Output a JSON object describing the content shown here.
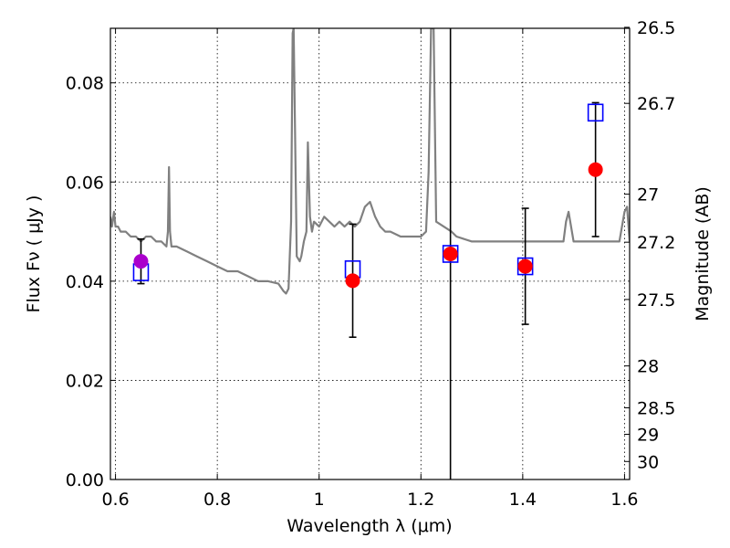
{
  "chart_data": {
    "type": "scatter",
    "title": "",
    "xlabel": "Wavelength  λ (μm)",
    "ylabel": "Flux  Fν  ( μJy )",
    "y2label": "Magnitude (AB)",
    "xlim": [
      0.59,
      1.61
    ],
    "ylim": [
      0.0,
      0.091
    ],
    "grid": true,
    "x_ticks": [
      {
        "value": 0.6,
        "label": "0.6"
      },
      {
        "value": 0.8,
        "label": "0.8"
      },
      {
        "value": 1.0,
        "label": "1"
      },
      {
        "value": 1.2,
        "label": "1.2"
      },
      {
        "value": 1.4,
        "label": "1.4"
      },
      {
        "value": 1.6,
        "label": "1.6"
      }
    ],
    "y_ticks": [
      {
        "value": 0.0,
        "label": "0.00"
      },
      {
        "value": 0.02,
        "label": "0.02"
      },
      {
        "value": 0.04,
        "label": "0.04"
      },
      {
        "value": 0.06,
        "label": "0.06"
      },
      {
        "value": 0.08,
        "label": "0.08"
      }
    ],
    "mag_ticks": [
      {
        "value": 26.5,
        "label": "26.5"
      },
      {
        "value": 26.7,
        "label": "26.7"
      },
      {
        "value": 27.0,
        "label": "27"
      },
      {
        "value": 27.2,
        "label": "27.2"
      },
      {
        "value": 27.5,
        "label": "27.5"
      },
      {
        "value": 28.0,
        "label": "28"
      },
      {
        "value": 28.5,
        "label": "28.5"
      },
      {
        "value": 29.0,
        "label": "29"
      },
      {
        "value": 30.0,
        "label": "30"
      }
    ],
    "model_spectrum": {
      "color": "#808080",
      "x": [
        0.59,
        0.593,
        0.597,
        0.6,
        0.605,
        0.61,
        0.62,
        0.63,
        0.64,
        0.65,
        0.66,
        0.67,
        0.68,
        0.69,
        0.7,
        0.703,
        0.705,
        0.707,
        0.71,
        0.72,
        0.74,
        0.76,
        0.78,
        0.8,
        0.82,
        0.84,
        0.86,
        0.88,
        0.9,
        0.92,
        0.93,
        0.935,
        0.94,
        0.945,
        0.948,
        0.95,
        0.956,
        0.962,
        0.965,
        0.97,
        0.975,
        0.978,
        0.982,
        0.986,
        0.99,
        1.0,
        1.01,
        1.02,
        1.03,
        1.04,
        1.05,
        1.06,
        1.07,
        1.08,
        1.09,
        1.1,
        1.11,
        1.12,
        1.13,
        1.14,
        1.16,
        1.18,
        1.2,
        1.21,
        1.215,
        1.22,
        1.225,
        1.23,
        1.26,
        1.27,
        1.3,
        1.33,
        1.36,
        1.4,
        1.44,
        1.47,
        1.48,
        1.485,
        1.49,
        1.5,
        1.55,
        1.57,
        1.58,
        1.59,
        1.6,
        1.605,
        1.61
      ],
      "y": [
        0.053,
        0.051,
        0.054,
        0.051,
        0.051,
        0.05,
        0.05,
        0.049,
        0.049,
        0.048,
        0.049,
        0.049,
        0.048,
        0.048,
        0.047,
        0.05,
        0.063,
        0.05,
        0.047,
        0.047,
        0.046,
        0.045,
        0.044,
        0.043,
        0.042,
        0.042,
        0.041,
        0.04,
        0.04,
        0.0395,
        0.038,
        0.0375,
        0.0385,
        0.052,
        0.09,
        0.091,
        0.045,
        0.044,
        0.045,
        0.048,
        0.05,
        0.068,
        0.053,
        0.05,
        0.052,
        0.051,
        0.053,
        0.052,
        0.051,
        0.052,
        0.051,
        0.052,
        0.051,
        0.052,
        0.055,
        0.056,
        0.053,
        0.051,
        0.05,
        0.05,
        0.049,
        0.049,
        0.049,
        0.05,
        0.062,
        0.091,
        0.091,
        0.052,
        0.05,
        0.049,
        0.048,
        0.048,
        0.048,
        0.048,
        0.048,
        0.048,
        0.048,
        0.052,
        0.054,
        0.048,
        0.048,
        0.048,
        0.048,
        0.048,
        0.054,
        0.055,
        0.048
      ]
    },
    "model_points": {
      "color": "#0000ff",
      "x": [
        0.65,
        1.066,
        1.258,
        1.405,
        1.543
      ],
      "y": [
        0.0418,
        0.0424,
        0.0455,
        0.043,
        0.074
      ]
    },
    "observed_points": {
      "color": "#ff0000",
      "x": [
        1.066,
        1.258,
        1.405,
        1.543
      ],
      "y": [
        0.0401,
        0.0455,
        0.043,
        0.0625
      ],
      "err": [
        0.0114,
        0.1,
        0.0117,
        0.0135
      ]
    },
    "optical_point": {
      "color": "#aa00cc",
      "x": 0.65,
      "y": 0.044,
      "err": 0.0045
    }
  }
}
